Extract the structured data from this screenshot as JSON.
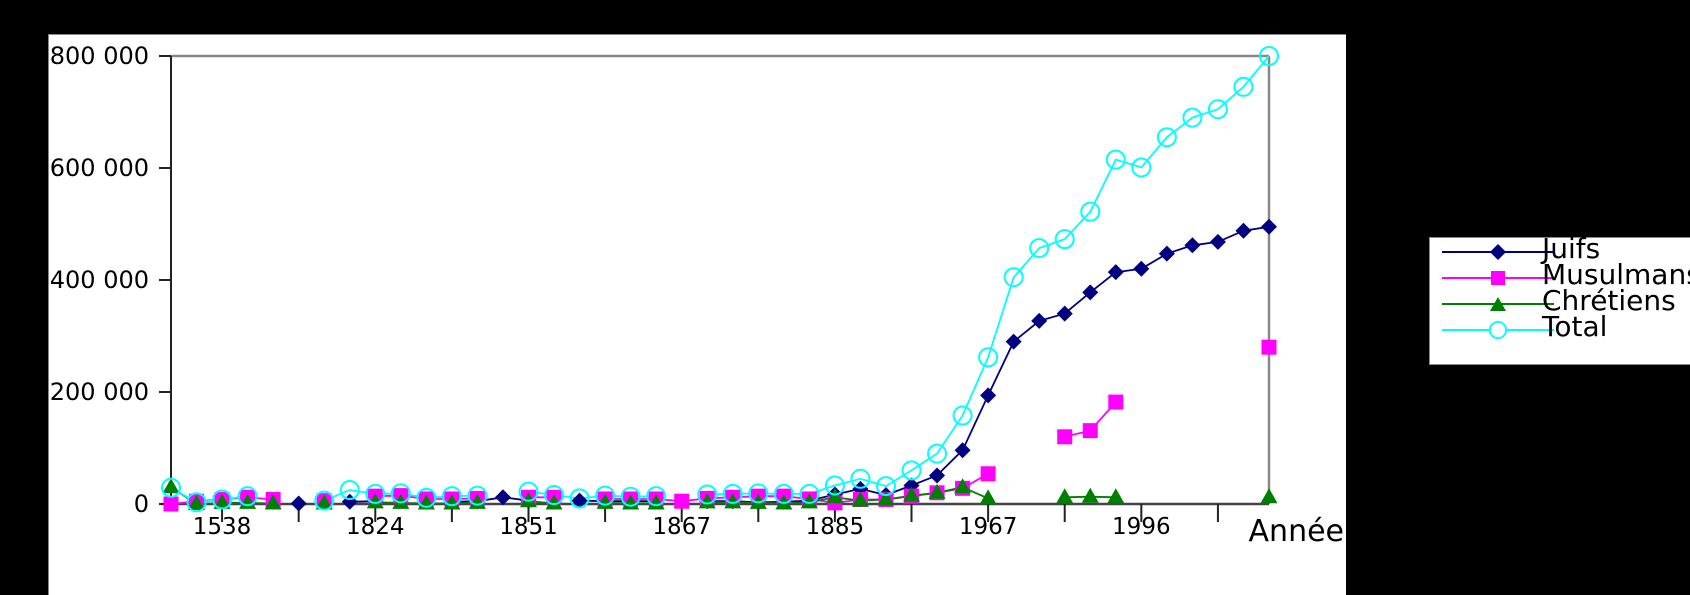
{
  "chart_data": {
    "type": "line",
    "title": "",
    "xlabel": "Année",
    "ylabel": "",
    "ylim": [
      0,
      800000
    ],
    "yticks": [
      0,
      200000,
      400000,
      600000,
      800000
    ],
    "ytick_labels": [
      "0",
      "200 000",
      "400 000",
      "600 000",
      "800 000"
    ],
    "n_points": 44,
    "xtick_every": 3,
    "xtick_first_index": 2,
    "xtick_labels": [
      {
        "index": 2,
        "label": "1538"
      },
      {
        "index": 8,
        "label": "1824"
      },
      {
        "index": 14,
        "label": "1851"
      },
      {
        "index": 20,
        "label": "1867"
      },
      {
        "index": 26,
        "label": "1885"
      },
      {
        "index": 32,
        "label": "1967"
      },
      {
        "index": 38,
        "label": "1996"
      }
    ],
    "grid": false,
    "legend_position": "right",
    "series": [
      {
        "name": "Juifs",
        "color": "#000080",
        "marker": "diamond",
        "values": [
          null,
          null,
          null,
          null,
          null,
          1000,
          null,
          4000,
          5000,
          null,
          null,
          4000,
          5000,
          12000,
          6000,
          null,
          6000,
          5000,
          5000,
          5000,
          null,
          5000,
          5000,
          3000,
          4000,
          6000,
          17000,
          27000,
          16000,
          33000,
          51000,
          96000,
          194000,
          290000,
          327000,
          340000,
          378000,
          414000,
          420000,
          447000,
          462000,
          468000,
          488000,
          495000
        ]
      },
      {
        "name": "Musulmans",
        "color": "#FF00FF",
        "marker": "square",
        "values": [
          0,
          5000,
          8000,
          12000,
          8000,
          null,
          6000,
          null,
          14000,
          15000,
          9000,
          9000,
          10000,
          null,
          12000,
          12000,
          null,
          9000,
          9000,
          9000,
          5000,
          10000,
          12000,
          14000,
          14000,
          9000,
          2000,
          8000,
          8000,
          14000,
          20000,
          28000,
          54000,
          null,
          null,
          120000,
          131000,
          182000,
          null,
          null,
          null,
          null,
          null,
          280000
        ]
      },
      {
        "name": "Chrétiens",
        "color": "#008000",
        "marker": "triangle",
        "values": [
          30000,
          0,
          2000,
          2000,
          1000,
          null,
          1000,
          null,
          3000,
          2000,
          1000,
          1000,
          2000,
          null,
          5000,
          1000,
          null,
          2000,
          1000,
          1000,
          null,
          3000,
          3000,
          2000,
          1000,
          3000,
          12000,
          6000,
          8000,
          15000,
          20000,
          30000,
          10000,
          null,
          null,
          12000,
          13000,
          12000,
          null,
          null,
          null,
          null,
          null,
          12000
        ]
      },
      {
        "name": "Total",
        "color": "#00FFFF",
        "marker": "circle-open",
        "values": [
          29000,
          3000,
          8000,
          14000,
          null,
          null,
          6000,
          25000,
          18000,
          19000,
          11000,
          14000,
          15000,
          null,
          22000,
          16000,
          10000,
          15000,
          13000,
          14000,
          null,
          17000,
          18000,
          19000,
          18000,
          18000,
          33000,
          45000,
          32000,
          60000,
          90000,
          158000,
          262000,
          405000,
          457000,
          473000,
          522000,
          615000,
          601000,
          655000,
          690000,
          705000,
          745000,
          800000
        ]
      }
    ]
  },
  "legend": {
    "items": [
      {
        "label": "Juifs",
        "color": "#000080",
        "marker": "diamond"
      },
      {
        "label": "Musulmans",
        "color": "#FF00FF",
        "marker": "square"
      },
      {
        "label": "Chrétiens",
        "color": "#008000",
        "marker": "triangle"
      },
      {
        "label": "Total",
        "color": "#00FFFF",
        "marker": "circle-open"
      }
    ]
  }
}
